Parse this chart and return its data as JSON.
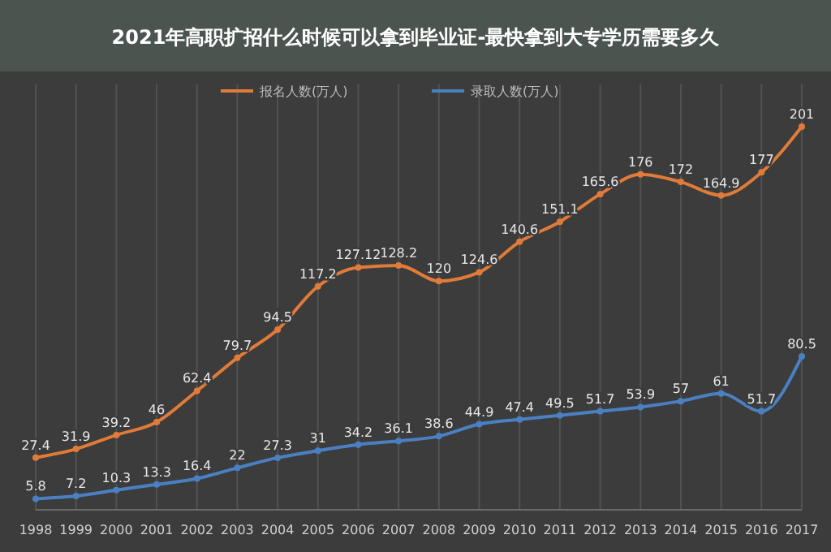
{
  "chart_data": {
    "type": "line",
    "title": "2021年高职扩招什么时候可以拿到毕业证-最快拿到大专学历需要多久",
    "categories": [
      "1998",
      "1999",
      "2000",
      "2001",
      "2002",
      "2003",
      "2004",
      "2005",
      "2006",
      "2007",
      "2008",
      "2009",
      "2010",
      "2011",
      "2012",
      "2013",
      "2014",
      "2015",
      "2016",
      "2017"
    ],
    "series": [
      {
        "name": "报名人数(万人)",
        "color": "#e07b39",
        "values": [
          27.4,
          31.9,
          39.2,
          46,
          62.4,
          79.7,
          94.5,
          117.2,
          127.12,
          128.2,
          120,
          124.6,
          140.6,
          151.1,
          165.6,
          176,
          172,
          164.9,
          177,
          201
        ]
      },
      {
        "name": "录取人数(万人)",
        "color": "#4a80c2",
        "values": [
          5.8,
          7.2,
          10.3,
          13.3,
          16.4,
          22,
          27.3,
          31,
          34.2,
          36.1,
          38.6,
          44.9,
          47.4,
          49.5,
          51.7,
          53.9,
          57,
          61,
          51.7,
          80.5
        ]
      }
    ],
    "tick_labels": "x",
    "data_labels": true,
    "grid": "x",
    "legend": "top",
    "marker": "circle",
    "line_style": "solid"
  }
}
